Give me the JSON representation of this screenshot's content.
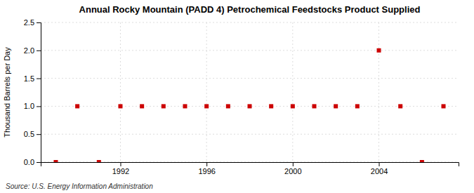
{
  "chart_data": {
    "type": "scatter",
    "title": "Annual Rocky Mountain (PADD 4) Petrochemical Feedstocks Product Supplied",
    "ylabel": "Thousand Barrels per Day",
    "annotation": "Source: U.S. Energy Information Administration",
    "x": [
      1989,
      1990,
      1991,
      1992,
      1993,
      1994,
      1995,
      1996,
      1997,
      1998,
      1999,
      2000,
      2001,
      2002,
      2003,
      2004,
      2005,
      2006,
      2007
    ],
    "values": [
      0.0,
      1.0,
      0.0,
      1.0,
      1.0,
      1.0,
      1.0,
      1.0,
      1.0,
      1.0,
      1.0,
      1.0,
      1.0,
      1.0,
      1.0,
      2.0,
      1.0,
      0.0,
      1.0
    ],
    "color": "#cc0000",
    "marker": "square",
    "xlim": [
      1988.3,
      2007.7
    ],
    "xticks": [
      1992,
      1996,
      2000,
      2004
    ],
    "ylim": [
      0.0,
      2.5
    ],
    "yticks": [
      {
        "value": 0.0,
        "label": "0.0"
      },
      0.5,
      {
        "value": 1.0,
        "label": "1.0"
      },
      1.5,
      {
        "value": 2.0,
        "label": "2.0"
      },
      2.5
    ],
    "grid": true
  }
}
